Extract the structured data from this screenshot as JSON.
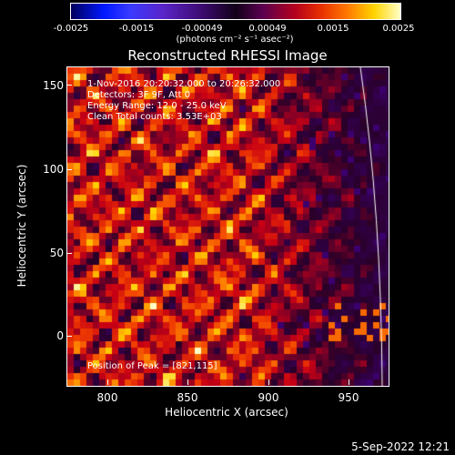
{
  "colorbar": {
    "ticks": [
      "-0.0025",
      "-0.0015",
      "-0.00049",
      "0.00049",
      "0.0015",
      "0.0025"
    ],
    "units_label": "(photons cm⁻² s⁻¹ asec⁻²)"
  },
  "plot": {
    "title": "Reconstructed RHESSI Image",
    "info_lines": [
      "1-Nov-2016 20:20:32.000 to 20:26:32.000",
      "Detectors: 3F 9F, Att 0",
      "Energy Range: 12.0 - 25.0 keV",
      "Clean     Total counts: 3.53E+03"
    ],
    "peak_label": "Position of Peak = [821,115]",
    "x_axis_label": "Heliocentric X (arcsec)",
    "y_axis_label": "Heliocentric Y (arcsec)",
    "x_ticks": [
      "800",
      "850",
      "900",
      "950"
    ],
    "y_ticks": [
      "150",
      "100",
      "50",
      "0"
    ]
  },
  "colors": {
    "background": "#000000",
    "text": "#ffffff",
    "limb_line": "#ffffff"
  },
  "footer": {
    "timestamp": "5-Sep-2022 12:21"
  }
}
